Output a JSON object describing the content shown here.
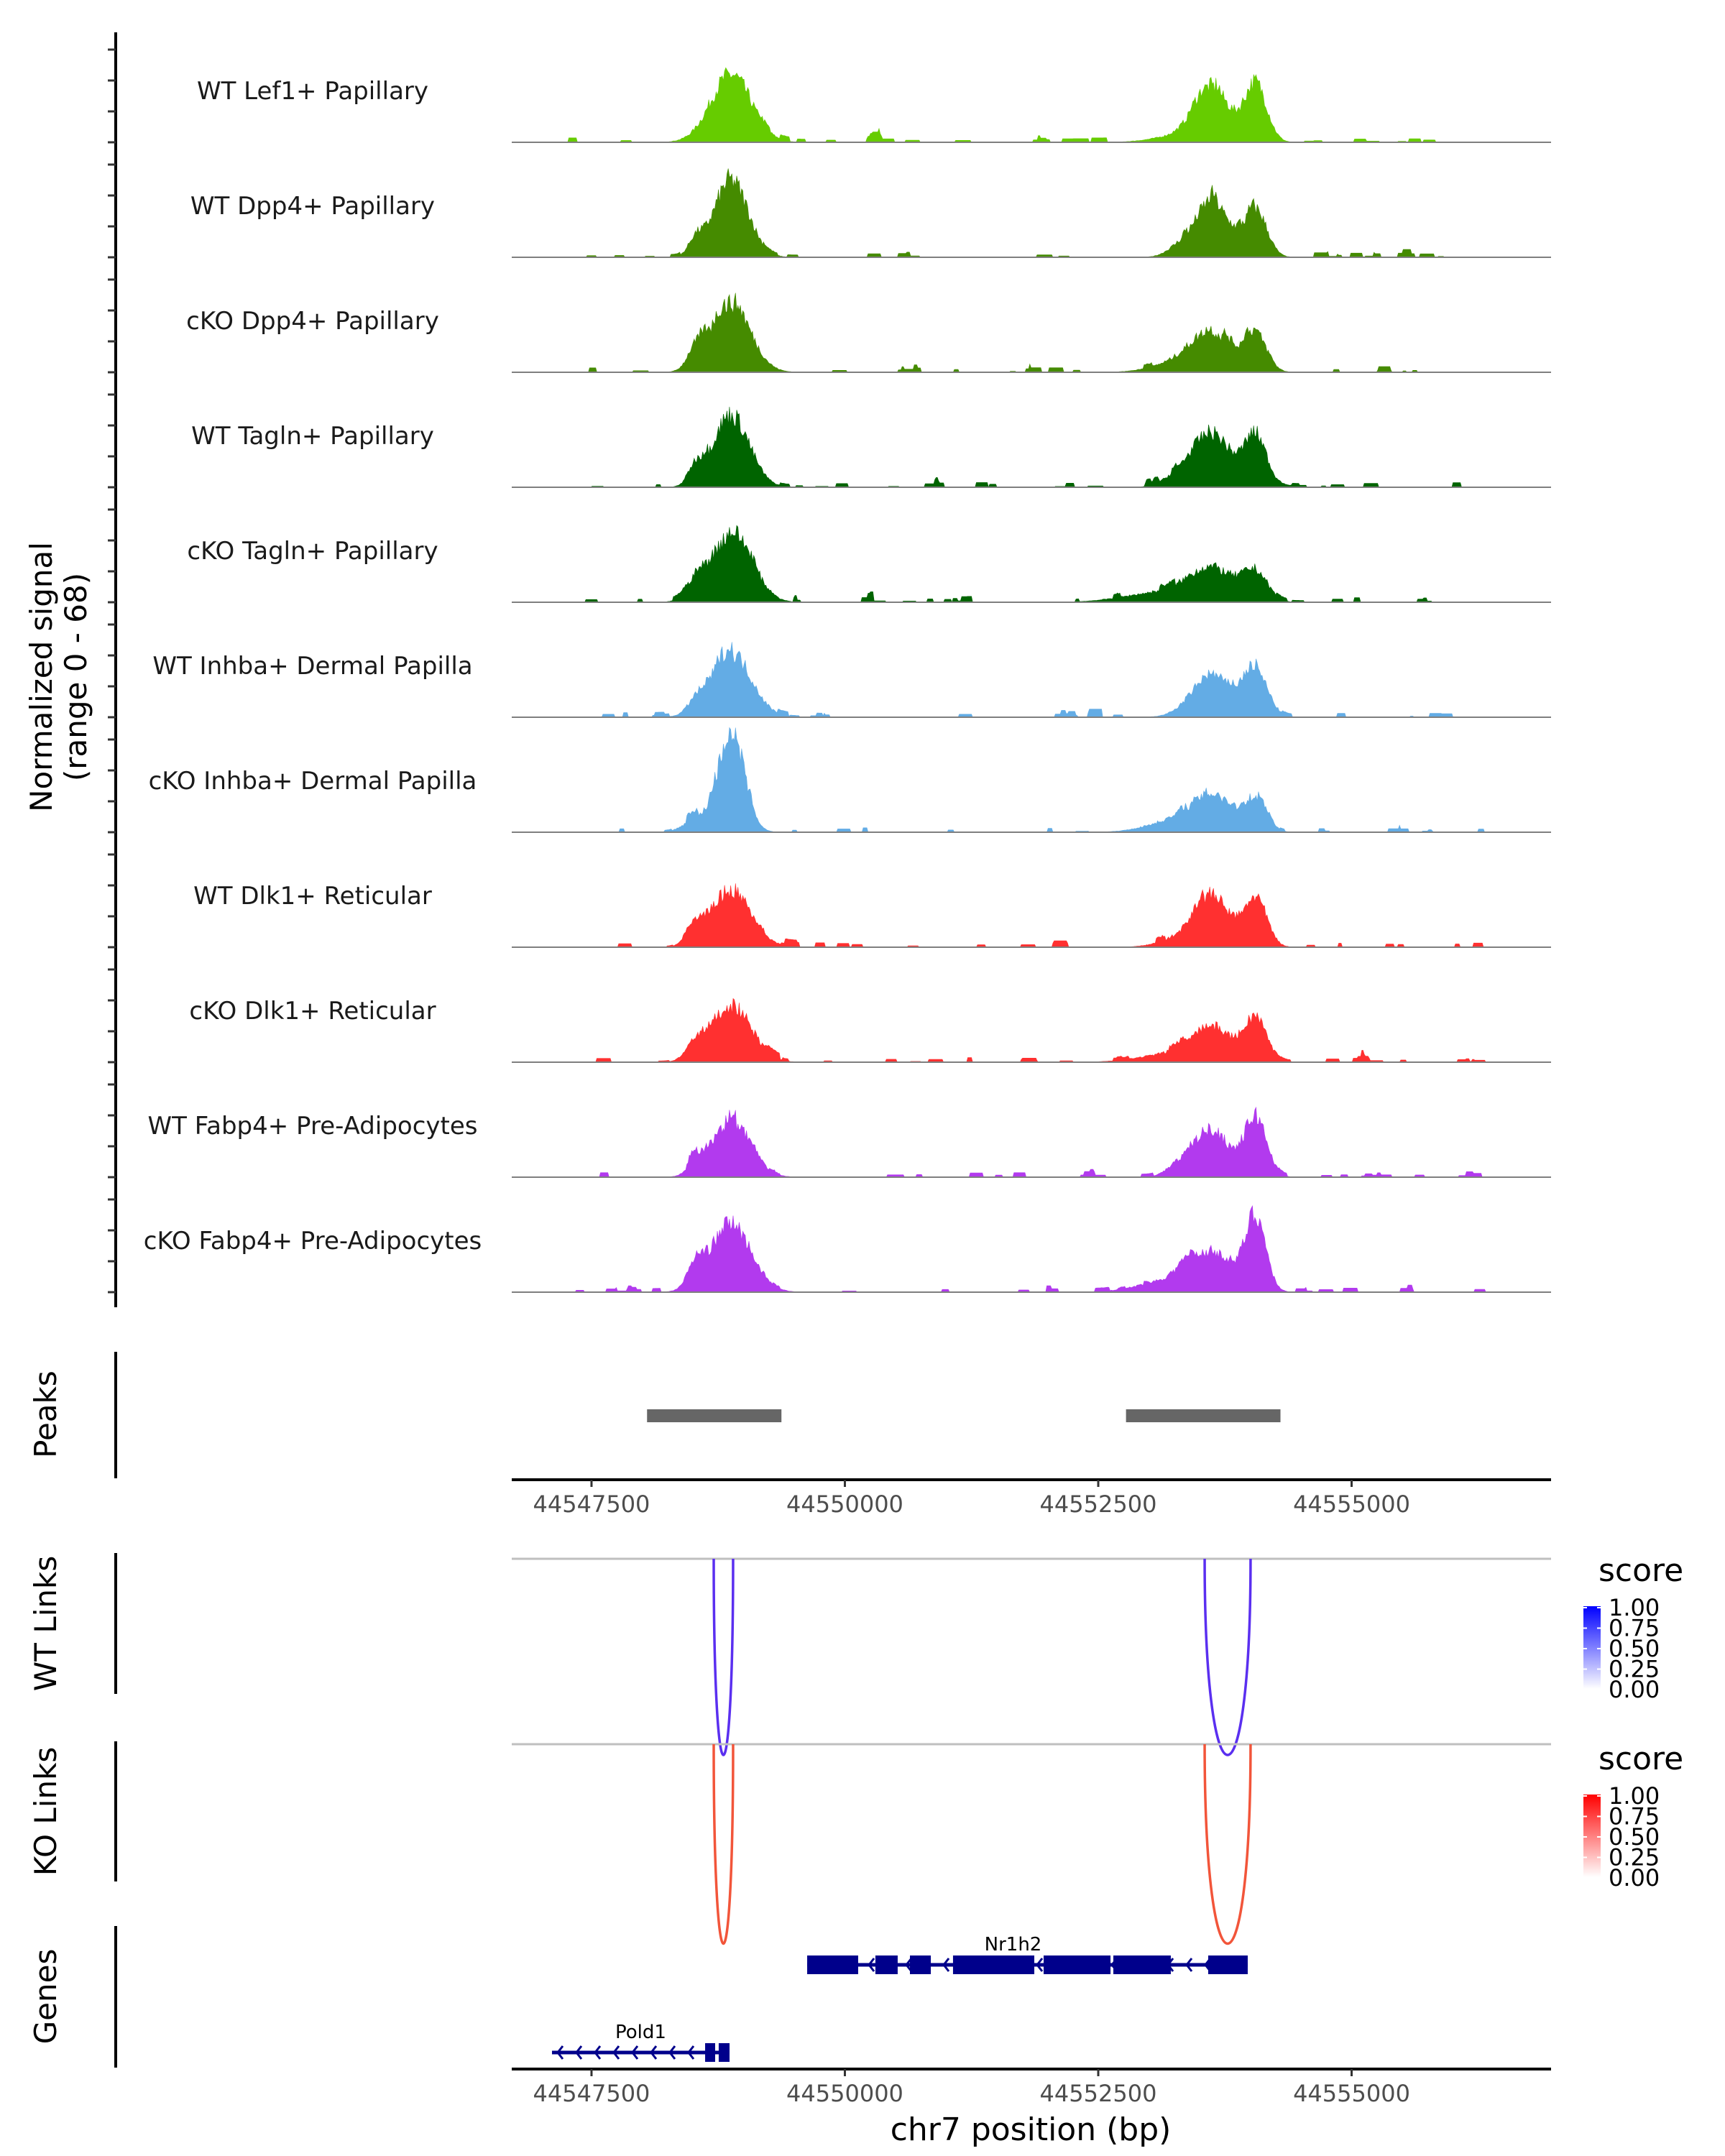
{
  "chart_data": {
    "type": "area",
    "title": "",
    "ylabel": "Normalized signal\n(range 0 - 68)",
    "ylabel_lines": [
      "Normalized signal",
      "(range 0 - 68)"
    ],
    "ylim": [
      0,
      68
    ],
    "xlabel": "chr7 position (bp)",
    "xlim": [
      44546713,
      44556968
    ],
    "x_ticks": [
      44547500,
      44550000,
      44552500,
      44555000
    ],
    "x_tick_labels": [
      "44547500",
      "44550000",
      "44552500",
      "44555000"
    ],
    "tracks": [
      {
        "name": "WT Lef1+ Papillary",
        "color": "#66cc00",
        "peaks": [
          [
            44548876,
            44,
            200
          ],
          [
            44553620,
            35,
            170
          ],
          [
            44554053,
            38,
            110
          ],
          [
            44553294,
            4,
            250
          ]
        ]
      },
      {
        "name": "WT Dpp4+ Papillary",
        "color": "#458b00",
        "peaks": [
          [
            44548876,
            50,
            170
          ],
          [
            44548528,
            10,
            70
          ],
          [
            44553620,
            37,
            160
          ],
          [
            44554053,
            31,
            110
          ],
          [
            44553294,
            6,
            120
          ]
        ]
      },
      {
        "name": "cKO Dpp4+ Papillary",
        "color": "#458b00",
        "peaks": [
          [
            44548876,
            45,
            190
          ],
          [
            44548528,
            12,
            80
          ],
          [
            44553620,
            24,
            200
          ],
          [
            44554053,
            24,
            110
          ],
          [
            44553294,
            6,
            250
          ]
        ]
      },
      {
        "name": "WT Tagln+ Papillary",
        "color": "#006400",
        "peaks": [
          [
            44548876,
            47,
            180
          ],
          [
            44548528,
            11,
            70
          ],
          [
            44553620,
            35,
            190
          ],
          [
            44554053,
            33,
            110
          ],
          [
            44553294,
            6,
            150
          ]
        ]
      },
      {
        "name": "cKO Tagln+ Papillary",
        "color": "#006400",
        "peaks": [
          [
            44548876,
            44,
            200
          ],
          [
            44548528,
            10,
            90
          ],
          [
            44553620,
            21,
            230
          ],
          [
            44554053,
            18,
            120
          ],
          [
            44553100,
            6,
            350
          ]
        ]
      },
      {
        "name": "WT Inhba+ Dermal Papilla",
        "color": "#63ace5",
        "peaks": [
          [
            44548876,
            42,
            200
          ],
          [
            44548528,
            6,
            80
          ],
          [
            44553620,
            27,
            200
          ],
          [
            44554053,
            29,
            120
          ]
        ]
      },
      {
        "name": "cKO Inhba+ Dermal Papilla",
        "color": "#63ace5",
        "peaks": [
          [
            44548876,
            65,
            130
          ],
          [
            44548528,
            8,
            120
          ],
          [
            44553620,
            21,
            220
          ],
          [
            44554053,
            20,
            110
          ],
          [
            44553200,
            6,
            250
          ]
        ]
      },
      {
        "name": "WT Dlk1+ Reticular",
        "color": "#ff3030",
        "peaks": [
          [
            44548876,
            37,
            200
          ],
          [
            44548528,
            8,
            90
          ],
          [
            44553620,
            33,
            170
          ],
          [
            44554053,
            32,
            110
          ],
          [
            44553294,
            5,
            200
          ]
        ]
      },
      {
        "name": "cKO Dlk1+ Reticular",
        "color": "#ff3030",
        "peaks": [
          [
            44548876,
            37,
            200
          ],
          [
            44548528,
            9,
            90
          ],
          [
            44553620,
            22,
            200
          ],
          [
            44554053,
            28,
            110
          ],
          [
            44553200,
            5,
            300
          ]
        ]
      },
      {
        "name": "WT Fabp4+ Pre-Adipocytes",
        "color": "#b23aee",
        "peaks": [
          [
            44548876,
            37,
            190
          ],
          [
            44548528,
            8,
            70
          ],
          [
            44553620,
            31,
            170
          ],
          [
            44554053,
            39,
            110
          ],
          [
            44553294,
            7,
            120
          ]
        ]
      },
      {
        "name": "cKO Fabp4+ Pre-Adipocytes",
        "color": "#b23aee",
        "peaks": [
          [
            44548876,
            44,
            200
          ],
          [
            44548528,
            14,
            80
          ],
          [
            44553620,
            24,
            220
          ],
          [
            44554053,
            48,
            100
          ],
          [
            44553200,
            7,
            300
          ]
        ]
      }
    ],
    "peaks_track": {
      "label": "Peaks",
      "regions": [
        [
          44548048,
          44549374
        ],
        [
          44552774,
          44554298
        ]
      ],
      "color": "#666666"
    },
    "links": [
      {
        "label": "WT Links",
        "color": "#5a2ff0",
        "arcs": [
          [
            44548706,
            44548897,
            0.8
          ],
          [
            44553550,
            44554003,
            0.8
          ]
        ],
        "legend": {
          "title": "score",
          "labels": [
            "1.00",
            "0.75",
            "0.50",
            "0.25",
            "0.00"
          ],
          "high": "#0000ff"
        }
      },
      {
        "label": "KO Links",
        "color": "#f2553a",
        "arcs": [
          [
            44548706,
            44548897,
            0.8
          ],
          [
            44553550,
            44554003,
            0.8
          ]
        ],
        "legend": {
          "title": "score",
          "labels": [
            "1.00",
            "0.75",
            "0.50",
            "0.25",
            "0.00"
          ],
          "high": "#ff0000"
        }
      }
    ],
    "genes_track": {
      "label": "Genes",
      "color": "#00008b",
      "genes": [
        {
          "name": "Nr1h2",
          "strand": "-",
          "start": 44549628,
          "end": 44553975,
          "exons": [
            [
              44549628,
              44550131
            ],
            [
              44550301,
              44550521
            ],
            [
              44550642,
              44550848
            ],
            [
              44551067,
              44551869
            ],
            [
              44551961,
              44552621
            ],
            [
              44552649,
              44553216
            ],
            [
              44553585,
              44553975
            ]
          ]
        },
        {
          "name": "Pold1",
          "strand": "-",
          "start": 44547110,
          "end": 44548862,
          "exons": [
            [
              44548621,
              44548720
            ],
            [
              44548755,
              44548862
            ]
          ]
        }
      ]
    }
  }
}
